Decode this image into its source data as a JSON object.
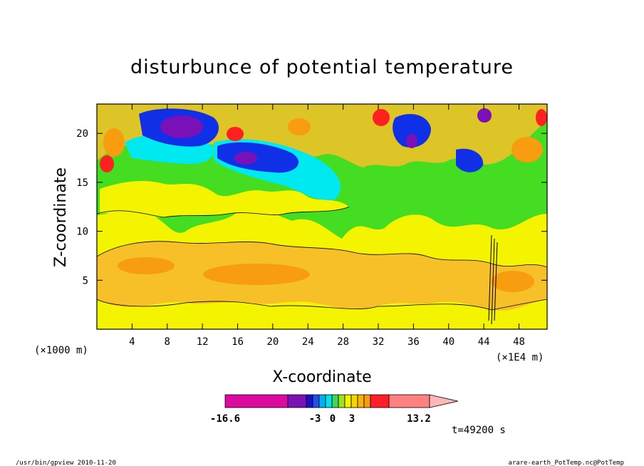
{
  "chart_data": {
    "type": "heatmap",
    "title": "disturbunce of potential temperature",
    "xlabel": "X-coordinate",
    "ylabel": "Z-coordinate",
    "x_unit_left": "(×1000 m)",
    "x_unit_right": "(×1E4 m)",
    "x_ticks": [
      "4",
      "8",
      "12",
      "16",
      "20",
      "24",
      "28",
      "32",
      "36",
      "40",
      "44",
      "48"
    ],
    "x_tick_values": [
      4,
      8,
      12,
      16,
      20,
      24,
      28,
      32,
      36,
      40,
      44,
      48
    ],
    "y_ticks": [
      "5",
      "10",
      "15",
      "20"
    ],
    "y_tick_values": [
      5,
      10,
      15,
      20
    ],
    "xlim": [
      0,
      51.2
    ],
    "ylim": [
      0,
      23
    ],
    "colorbar": {
      "min_label": "-16.6",
      "max_label": "13.2",
      "mid_labels": [
        "-3",
        "0",
        "3"
      ],
      "levels": [
        -16.6,
        -9,
        -6,
        -5,
        -4,
        -3,
        -2,
        -1,
        0,
        1,
        2,
        3,
        5,
        9,
        13.2
      ],
      "colors": [
        "#dc0a9e",
        "#7a12b4",
        "#1a0ecf",
        "#1f50e8",
        "#00b0f0",
        "#00e3e9",
        "#3bd85a",
        "#9de21a",
        "#f4f000",
        "#f5d400",
        "#f8b400",
        "#f59c10",
        "#ff1f2a",
        "#ff8080",
        "#ffb8b8"
      ]
    },
    "time_label": "t=49200 s"
  },
  "footer": {
    "left": "/usr/bin/gpview  2010-11-20",
    "right": "arare-earth_PotTemp.nc@PotTemp"
  },
  "palette": {
    "yellow": "#f4f400",
    "lightorange": "#f8c028",
    "orange": "#f89c10",
    "green": "#44dd22",
    "cyan": "#00e8f0",
    "blue": "#1030e8",
    "purple": "#7a10b8",
    "red": "#ff2020"
  }
}
